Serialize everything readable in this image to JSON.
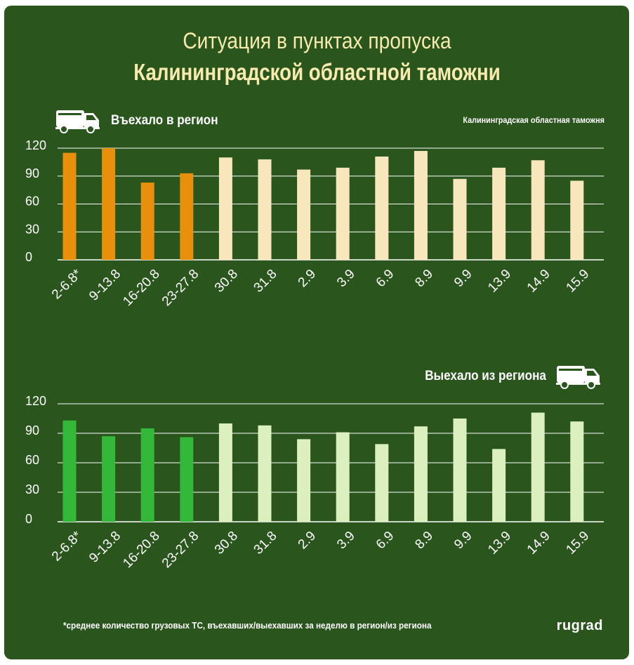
{
  "title": {
    "line1": "Ситуация в пунктах пропуска",
    "line2": "Калининградской областной таможни"
  },
  "source": "Калининградская областная таможня",
  "footnote": "*среднее количество грузовых ТС, въехавших/выехавших за неделю в регион/из региона",
  "brand": "rugrad",
  "icons": {
    "truck": "truck-icon"
  },
  "colors": {
    "background": "#2a561e",
    "title": "#f7eaae",
    "in_weekly": "#e88f0c",
    "in_daily": "#f8e7bd",
    "out_weekly": "#33b83a",
    "out_daily": "#dcefbe",
    "gridline": "#ffffff"
  },
  "chart_data": [
    {
      "type": "bar",
      "title": "Въехало в регион",
      "categories": [
        "2-6.8*",
        "9-13.8",
        "16-20.8",
        "23-27.8",
        "30.8",
        "31.8",
        "2.9",
        "3.9",
        "6.9",
        "8.9",
        "9.9",
        "13.9",
        "14.9",
        "15.9"
      ],
      "values": [
        115,
        120,
        83,
        93,
        110,
        108,
        97,
        99,
        111,
        117,
        87,
        99,
        107,
        85
      ],
      "yticks": [
        0,
        30,
        60,
        90,
        120
      ],
      "ylim": [
        0,
        120
      ],
      "grid": true,
      "highlight_first": 4
    },
    {
      "type": "bar",
      "title": "Выехало из региона",
      "categories": [
        "2-6.8*",
        "9-13.8",
        "16-20.8",
        "23-27.8",
        "30.8",
        "31.8",
        "2.9",
        "3.9",
        "6.9",
        "8.9",
        "9.9",
        "13.9",
        "14.9",
        "15.9"
      ],
      "values": [
        103,
        87,
        95,
        86,
        100,
        98,
        84,
        91,
        79,
        97,
        105,
        74,
        111,
        102
      ],
      "yticks": [
        0,
        30,
        60,
        90,
        120
      ],
      "ylim": [
        0,
        120
      ],
      "grid": true,
      "highlight_first": 4
    }
  ]
}
